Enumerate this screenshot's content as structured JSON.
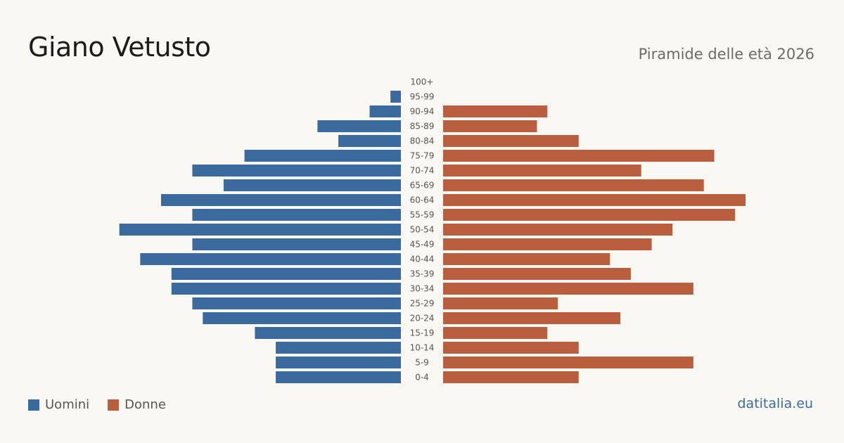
{
  "header": {
    "title": "Giano Vetusto",
    "subtitle": "Piramide delle età 2026"
  },
  "legend": {
    "men_label": "Uomini",
    "women_label": "Donne"
  },
  "source": "datitalia.eu",
  "colors": {
    "men": "#3b6a9e",
    "women": "#b95e3e",
    "label": "#555555"
  },
  "chart_data": {
    "type": "bar",
    "orientation": "horizontal-pyramid",
    "categories": [
      "100+",
      "95-99",
      "90-94",
      "85-89",
      "80-84",
      "75-79",
      "70-74",
      "65-69",
      "60-64",
      "55-59",
      "50-54",
      "45-49",
      "40-44",
      "35-39",
      "30-34",
      "25-29",
      "20-24",
      "15-19",
      "10-14",
      "5-9",
      "0-4"
    ],
    "series": [
      {
        "name": "Uomini",
        "values": [
          0,
          1,
          3,
          8,
          6,
          15,
          20,
          17,
          23,
          20,
          27,
          20,
          25,
          22,
          22,
          20,
          19,
          14,
          12,
          12,
          12
        ]
      },
      {
        "name": "Donne",
        "values": [
          0,
          0,
          10,
          9,
          13,
          26,
          19,
          25,
          29,
          28,
          22,
          20,
          16,
          18,
          24,
          11,
          17,
          10,
          13,
          24,
          13
        ]
      }
    ],
    "xlim": [
      0,
      29
    ],
    "grid": false,
    "legend_position": "bottom-left"
  }
}
